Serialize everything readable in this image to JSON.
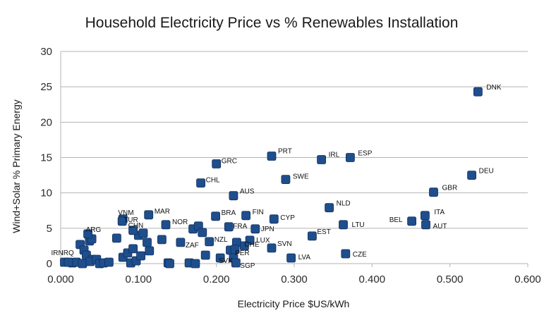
{
  "chart_data": {
    "type": "scatter",
    "title": "Household Electricity Price vs % Renewables Installation",
    "xlabel": "Electricity Price $US/kWh",
    "ylabel": "Wind+Solar % Primary Energy",
    "xlim": [
      0,
      0.6
    ],
    "ylim": [
      0,
      30
    ],
    "x_ticks": [
      "0.000",
      "0.100",
      "0.200",
      "0.300",
      "0.400",
      "0.500",
      "0.600"
    ],
    "y_ticks": [
      "0",
      "5",
      "10",
      "15",
      "20",
      "25",
      "30"
    ],
    "grid": true,
    "marker_color": "#1f4e8c",
    "labeled_points": [
      {
        "label": "DNK",
        "x": 0.536,
        "y": 24.3
      },
      {
        "label": "PRT",
        "x": 0.271,
        "y": 15.2
      },
      {
        "label": "IRL",
        "x": 0.335,
        "y": 14.7
      },
      {
        "label": "ESP",
        "x": 0.372,
        "y": 15.0
      },
      {
        "label": "GRC",
        "x": 0.2,
        "y": 14.1
      },
      {
        "label": "DEU",
        "x": 0.528,
        "y": 12.5
      },
      {
        "label": "SWE",
        "x": 0.289,
        "y": 11.9
      },
      {
        "label": "CHL",
        "x": 0.18,
        "y": 11.4
      },
      {
        "label": "GBR",
        "x": 0.479,
        "y": 10.1
      },
      {
        "label": "AUS",
        "x": 0.222,
        "y": 9.6
      },
      {
        "label": "NLD",
        "x": 0.345,
        "y": 7.9
      },
      {
        "label": "ITA",
        "x": 0.468,
        "y": 6.8
      },
      {
        "label": "MAR",
        "x": 0.113,
        "y": 6.9
      },
      {
        "label": "VNM",
        "x": 0.08,
        "y": 6.3
      },
      {
        "label": "BRA",
        "x": 0.199,
        "y": 6.7
      },
      {
        "label": "FIN",
        "x": 0.238,
        "y": 6.8
      },
      {
        "label": "TUR",
        "x": 0.079,
        "y": 6.0
      },
      {
        "label": "CYP",
        "x": 0.274,
        "y": 6.3
      },
      {
        "label": "BEL",
        "x": 0.451,
        "y": 6.0
      },
      {
        "label": "NOR",
        "x": 0.135,
        "y": 5.5
      },
      {
        "label": "CHN",
        "x": 0.093,
        "y": 4.7
      },
      {
        "label": "FRA",
        "x": 0.216,
        "y": 5.2
      },
      {
        "label": "LTU",
        "x": 0.363,
        "y": 5.5
      },
      {
        "label": "AUT",
        "x": 0.469,
        "y": 5.5
      },
      {
        "label": "ARG",
        "x": 0.035,
        "y": 4.2
      },
      {
        "label": "JPN",
        "x": 0.25,
        "y": 4.9
      },
      {
        "label": "EST",
        "x": 0.323,
        "y": 3.9
      },
      {
        "label": "NZL",
        "x": 0.191,
        "y": 3.1
      },
      {
        "label": "LUX",
        "x": 0.243,
        "y": 3.3
      },
      {
        "label": "ZAF",
        "x": 0.154,
        "y": 3.0
      },
      {
        "label": "CHE",
        "x": 0.236,
        "y": 2.5
      },
      {
        "label": "SVN",
        "x": 0.271,
        "y": 2.2
      },
      {
        "label": "PER",
        "x": 0.224,
        "y": 2.0
      },
      {
        "label": "CZE",
        "x": 0.366,
        "y": 1.4
      },
      {
        "label": "LVA",
        "x": 0.296,
        "y": 0.8
      },
      {
        "label": "IRN",
        "x": 0.005,
        "y": 0.2
      },
      {
        "label": "IRQ",
        "x": 0.01,
        "y": 0.2
      },
      {
        "label": "SVK",
        "x": 0.222,
        "y": 0.8
      },
      {
        "label": "SGP",
        "x": 0.225,
        "y": 0.1
      }
    ],
    "unlabeled_points": [
      {
        "x": 0.025,
        "y": 2.7
      },
      {
        "x": 0.03,
        "y": 1.9
      },
      {
        "x": 0.033,
        "y": 1.2
      },
      {
        "x": 0.037,
        "y": 3.2
      },
      {
        "x": 0.04,
        "y": 3.5
      },
      {
        "x": 0.041,
        "y": 0.6
      },
      {
        "x": 0.015,
        "y": 0.1
      },
      {
        "x": 0.02,
        "y": 0.2
      },
      {
        "x": 0.028,
        "y": 0.0
      },
      {
        "x": 0.038,
        "y": 0.3
      },
      {
        "x": 0.046,
        "y": 0.6
      },
      {
        "x": 0.05,
        "y": 0.0
      },
      {
        "x": 0.055,
        "y": 0.1
      },
      {
        "x": 0.062,
        "y": 0.2
      },
      {
        "x": 0.072,
        "y": 3.6
      },
      {
        "x": 0.08,
        "y": 0.9
      },
      {
        "x": 0.086,
        "y": 1.5
      },
      {
        "x": 0.09,
        "y": 0.1
      },
      {
        "x": 0.093,
        "y": 2.1
      },
      {
        "x": 0.097,
        "y": 0.4
      },
      {
        "x": 0.1,
        "y": 4.0
      },
      {
        "x": 0.103,
        "y": 1.1
      },
      {
        "x": 0.106,
        "y": 4.3
      },
      {
        "x": 0.111,
        "y": 3.0
      },
      {
        "x": 0.114,
        "y": 1.8
      },
      {
        "x": 0.13,
        "y": 3.4
      },
      {
        "x": 0.138,
        "y": 0.1
      },
      {
        "x": 0.14,
        "y": 0.0
      },
      {
        "x": 0.165,
        "y": 0.1
      },
      {
        "x": 0.17,
        "y": 4.9
      },
      {
        "x": 0.173,
        "y": 0.0
      },
      {
        "x": 0.177,
        "y": 5.3
      },
      {
        "x": 0.182,
        "y": 4.4
      },
      {
        "x": 0.186,
        "y": 1.2
      },
      {
        "x": 0.205,
        "y": 0.8
      },
      {
        "x": 0.218,
        "y": 1.9
      },
      {
        "x": 0.226,
        "y": 3.0
      }
    ]
  }
}
